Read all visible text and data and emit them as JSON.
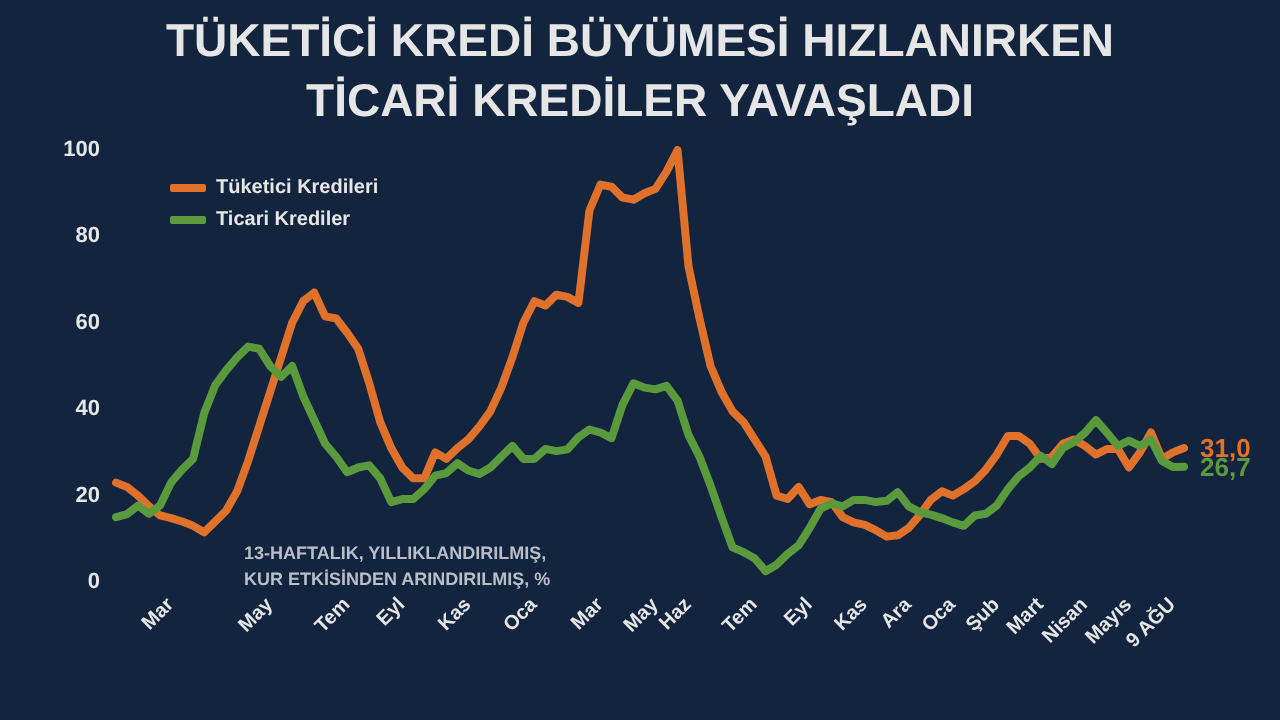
{
  "chart_data": {
    "type": "line",
    "title": "TÜKETİCİ KREDİ BÜYÜMESİ HIZLANIRKEN\nTİCARİ KREDİLER YAVAŞLADI",
    "categories": [
      null,
      null,
      null,
      null,
      null,
      "Mar",
      null,
      null,
      null,
      null,
      null,
      null,
      null,
      null,
      "May",
      null,
      null,
      null,
      null,
      null,
      null,
      "Tem",
      null,
      null,
      null,
      null,
      "Eyl",
      null,
      null,
      null,
      null,
      null,
      "Kas",
      null,
      null,
      null,
      null,
      null,
      "Oca",
      null,
      null,
      null,
      null,
      null,
      "Mar",
      null,
      null,
      null,
      null,
      "May",
      null,
      null,
      "Haz",
      null,
      null,
      null,
      null,
      null,
      "Tem",
      null,
      null,
      null,
      null,
      "Eyl",
      null,
      null,
      null,
      null,
      "Kas",
      null,
      null,
      null,
      "Ara",
      null,
      null,
      null,
      "Oca",
      null,
      null,
      null,
      "Şub",
      null,
      null,
      null,
      "Mart",
      null,
      null,
      null,
      "Nisan",
      null,
      null,
      null,
      "Mayıs",
      null,
      null,
      null,
      "9 AĞU",
      null
    ],
    "ylim": [
      0,
      100
    ],
    "yticks": [
      0,
      20,
      40,
      60,
      80,
      100
    ],
    "grid": false,
    "legend": "top left",
    "marker": "none",
    "line_style": "solid",
    "annotations": [
      "13-HAFTALIK, YILLIKLANDIRILMIŞ,\nKUR ETKİSİNDEN ARINDIRILMIŞ, %"
    ],
    "series": [
      {
        "name": "Tüketici Kredileri",
        "color": "#e0712a",
        "values": [
          23,
          22,
          20,
          17.5,
          15.4,
          14.8,
          14,
          13,
          11.5,
          14,
          16.5,
          21,
          28,
          36,
          44,
          52,
          60,
          65,
          67,
          61.5,
          61,
          57.7,
          54,
          46,
          37,
          31,
          26.5,
          24,
          24,
          30,
          28.5,
          31,
          33,
          36,
          39.5,
          45,
          52,
          60,
          65,
          64,
          66.5,
          66,
          64.6,
          86,
          92,
          91.5,
          89,
          88.5,
          90,
          91,
          95,
          100,
          73,
          61,
          50,
          44,
          39.5,
          37,
          33,
          29,
          20,
          19.2,
          22,
          18,
          19,
          18.5,
          15,
          13.8,
          13.2,
          12,
          10.5,
          10.8,
          12.5,
          15.5,
          19,
          21,
          20,
          21.5,
          23.3,
          26,
          29.5,
          33.8,
          33.8,
          32,
          28.5,
          29,
          32,
          33,
          31.5,
          29.5,
          30.8,
          30.8,
          26.5,
          30,
          34.6,
          28.5,
          30,
          31
        ],
        "value_labels": [
          null,
          null,
          null,
          null,
          null,
          null,
          null,
          null,
          null,
          null,
          null,
          null,
          null,
          null,
          null,
          null,
          null,
          null,
          null,
          null,
          null,
          null,
          null,
          null,
          null,
          null,
          null,
          null,
          null,
          null,
          null,
          null,
          null,
          null,
          null,
          null,
          null,
          null,
          null,
          null,
          null,
          null,
          null,
          null,
          null,
          null,
          null,
          null,
          null,
          null,
          null,
          null,
          null,
          null,
          null,
          null,
          null,
          null,
          null,
          null,
          null,
          null,
          null,
          null,
          null,
          null,
          null,
          null,
          null,
          null,
          null,
          null,
          null,
          null,
          null,
          null,
          null,
          null,
          null,
          null,
          null,
          null,
          null,
          null,
          null,
          null,
          null,
          null,
          null,
          null,
          null,
          null,
          null,
          null,
          null,
          null,
          null,
          "31,0"
        ]
      },
      {
        "name": "Ticari Krediler",
        "color": "#5b9a3c",
        "values": [
          15,
          15.7,
          17.7,
          15.8,
          17.7,
          23,
          26,
          28.5,
          39,
          45.5,
          49,
          52,
          54.5,
          54,
          50,
          47.5,
          50,
          43,
          37.5,
          32,
          29,
          25.4,
          26.5,
          27,
          24,
          18.5,
          19.2,
          19.2,
          21.5,
          24.6,
          25.2,
          27.5,
          25.8,
          25,
          26.5,
          29,
          31.5,
          28.5,
          28.5,
          30.8,
          30.3,
          30.7,
          33.5,
          35.3,
          34.6,
          33.3,
          41,
          46,
          45,
          44.6,
          45.4,
          42,
          34,
          29,
          22.3,
          15,
          8,
          6.9,
          5.5,
          2.5,
          4,
          6.5,
          8.5,
          12.5,
          17,
          18.2,
          17.5,
          19,
          19,
          18.5,
          18.8,
          20.8,
          17.5,
          16.2,
          15.6,
          14.8,
          13.8,
          13,
          15.4,
          15.8,
          17.7,
          21.5,
          24.5,
          26.5,
          29.2,
          27.3,
          31,
          32.4,
          34.5,
          37.5,
          34.6,
          31.5,
          32.7,
          31.5,
          33,
          28,
          26.6,
          26.7
        ],
        "value_labels": [
          null,
          null,
          null,
          null,
          null,
          null,
          null,
          null,
          null,
          null,
          null,
          null,
          null,
          null,
          null,
          null,
          null,
          null,
          null,
          null,
          null,
          null,
          null,
          null,
          null,
          null,
          null,
          null,
          null,
          null,
          null,
          null,
          null,
          null,
          null,
          null,
          null,
          null,
          null,
          null,
          null,
          null,
          null,
          null,
          null,
          null,
          null,
          null,
          null,
          null,
          null,
          null,
          null,
          null,
          null,
          null,
          null,
          null,
          null,
          null,
          null,
          null,
          null,
          null,
          null,
          null,
          null,
          null,
          null,
          null,
          null,
          null,
          null,
          null,
          null,
          null,
          null,
          null,
          null,
          null,
          null,
          null,
          null,
          null,
          null,
          null,
          null,
          null,
          null,
          null,
          null,
          null,
          null,
          null,
          null,
          null,
          null,
          "26,7"
        ]
      }
    ]
  }
}
